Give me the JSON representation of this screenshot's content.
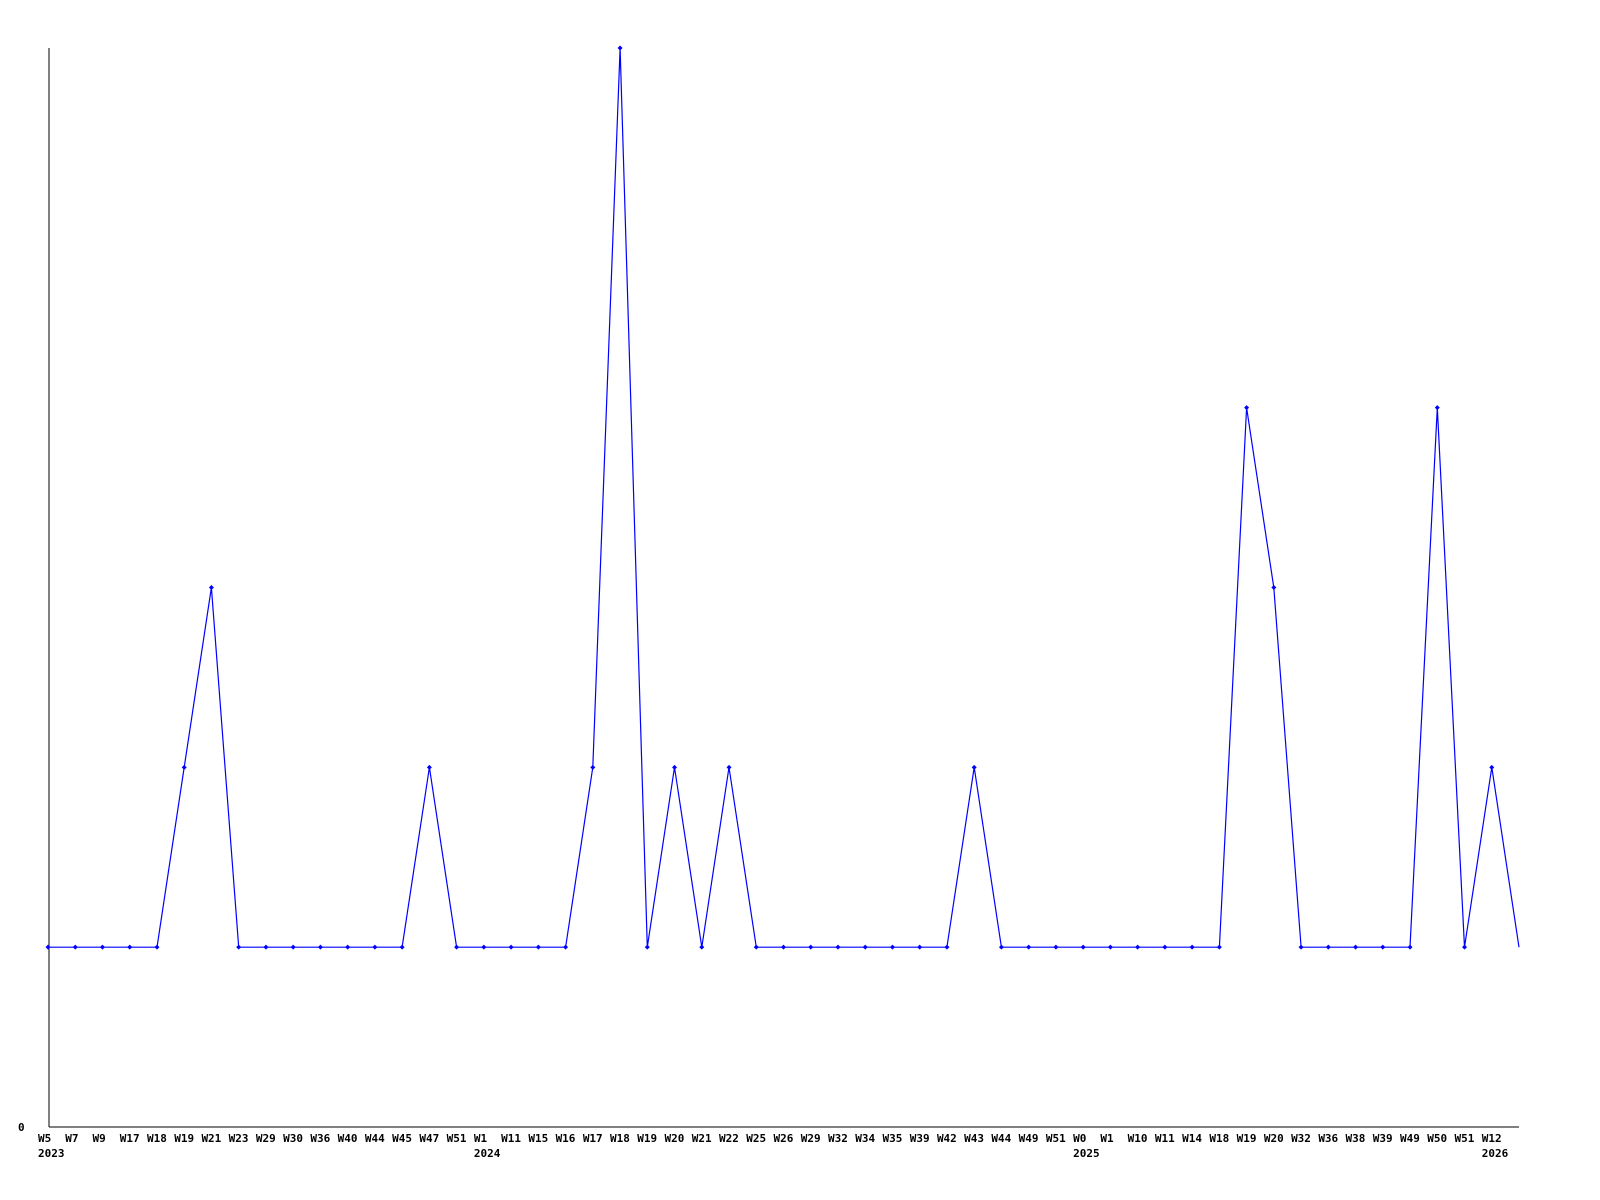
{
  "chart_data": {
    "type": "line",
    "title": "",
    "xlabel": "",
    "ylabel": "",
    "y_tick_labels": [
      "0"
    ],
    "ylim": [
      0,
      6
    ],
    "grid": false,
    "line_color": "#0000ff",
    "axis_color": "#000000",
    "categories": [
      "W5",
      "W7",
      "W9",
      "W17",
      "W18",
      "W19",
      "W21",
      "W23",
      "W29",
      "W30",
      "W36",
      "W40",
      "W44",
      "W45",
      "W47",
      "W51",
      "W1",
      "W11",
      "W15",
      "W16",
      "W17",
      "W18",
      "W19",
      "W20",
      "W21",
      "W22",
      "W25",
      "W26",
      "W29",
      "W32",
      "W34",
      "W35",
      "W39",
      "W42",
      "W43",
      "W44",
      "W49",
      "W51",
      "W0",
      "W1",
      "W10",
      "W11",
      "W14",
      "W18",
      "W19",
      "W20",
      "W32",
      "W36",
      "W38",
      "W39",
      "W49",
      "W50",
      "W51",
      "W12",
      ""
    ],
    "years": [
      {
        "label": "2023",
        "index": 0
      },
      {
        "label": "2024",
        "index": 16
      },
      {
        "label": "2025",
        "index": 38
      },
      {
        "label": "2026",
        "index": 53
      }
    ],
    "values": [
      1,
      1,
      1,
      1,
      1,
      2,
      3,
      1,
      1,
      1,
      1,
      1,
      1,
      1,
      2,
      1,
      1,
      1,
      1,
      1,
      2,
      6,
      1,
      2,
      1,
      2,
      1,
      1,
      1,
      1,
      1,
      1,
      1,
      1,
      2,
      1,
      1,
      1,
      1,
      1,
      1,
      1,
      1,
      1,
      4,
      3,
      1,
      1,
      1,
      1,
      1,
      4,
      1,
      2,
      1
    ]
  }
}
